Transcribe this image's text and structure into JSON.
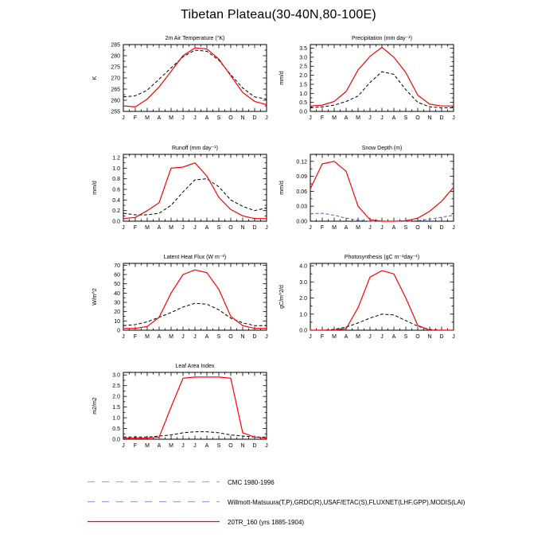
{
  "page_title": "Tibetan Plateau(30-40N,80-100E)",
  "months": [
    "J",
    "F",
    "M",
    "A",
    "M",
    "J",
    "J",
    "A",
    "S",
    "O",
    "N",
    "D",
    "J"
  ],
  "legend": {
    "items": [
      {
        "label": "CMC 1980-1996",
        "color": "#b0b0b0",
        "dash": "9 9"
      },
      {
        "label": "Willmott-Matsuura(T,P),GRDC(R),USAF/ETAC(S),FLUXNET(LHF,GPP),MODIS(LAI)",
        "color": "#9f9fdd",
        "dash": "9 9"
      },
      {
        "label": "20TR_160 (yrs 1885-1904)",
        "color": "#ff0000",
        "dash": ""
      }
    ]
  },
  "chart_data": [
    {
      "type": "line",
      "title": "2m Air Temperature (°K)",
      "ylabel": "K",
      "ylim": [
        255,
        285
      ],
      "yticks": [
        255,
        260,
        265,
        270,
        275,
        280,
        285
      ],
      "ydecimals": 0,
      "categories": [
        "J",
        "F",
        "M",
        "A",
        "M",
        "J",
        "J",
        "A",
        "S",
        "O",
        "N",
        "D",
        "J"
      ],
      "series": [
        {
          "name": "Willmott-Matsuura(T,P) obs",
          "color": "#000000",
          "dash": "4 2.5",
          "values": [
            261.5,
            262,
            264.5,
            269.5,
            274.5,
            279.5,
            282.5,
            282,
            278,
            271.5,
            265.5,
            261.5,
            260.5
          ]
        },
        {
          "name": "20TR_160 (yrs 1885-1904)",
          "color": "#ff0000",
          "dash": "",
          "values": [
            257.5,
            257,
            260.5,
            266,
            273,
            280,
            283.5,
            283,
            278.5,
            271,
            263.5,
            259.5,
            258
          ]
        }
      ]
    },
    {
      "type": "line",
      "title": "Precipitation (mm day⁻¹)",
      "ylabel": "mm/d",
      "ylim": [
        0,
        3.7
      ],
      "yticks": [
        0.0,
        0.5,
        1.0,
        1.5,
        2.0,
        2.5,
        3.0,
        3.5
      ],
      "ydecimals": 1,
      "categories": [
        "J",
        "F",
        "M",
        "A",
        "M",
        "J",
        "J",
        "A",
        "S",
        "O",
        "N",
        "D",
        "J"
      ],
      "series": [
        {
          "name": "Willmott-Matsuura(T,P) obs",
          "color": "#000000",
          "dash": "4 2.5",
          "values": [
            0.2,
            0.25,
            0.35,
            0.55,
            0.85,
            1.6,
            2.2,
            2.05,
            1.2,
            0.5,
            0.25,
            0.2,
            0.2
          ]
        },
        {
          "name": "20TR_160 (yrs 1885-1904)",
          "color": "#ff0000",
          "dash": "",
          "values": [
            0.3,
            0.35,
            0.55,
            1.1,
            2.3,
            3.05,
            3.55,
            3.0,
            2.15,
            0.9,
            0.4,
            0.3,
            0.3
          ]
        }
      ]
    },
    {
      "type": "line",
      "title": "Runoff (mm day⁻¹)",
      "ylabel": "mm/d",
      "ylim": [
        0,
        1.26
      ],
      "yticks": [
        0.0,
        0.2,
        0.4,
        0.6,
        0.8,
        1.0,
        1.2
      ],
      "ydecimals": 1,
      "categories": [
        "J",
        "F",
        "M",
        "A",
        "M",
        "J",
        "J",
        "A",
        "S",
        "O",
        "N",
        "D",
        "J"
      ],
      "series": [
        {
          "name": "GRDC(R) obs",
          "color": "#000000",
          "dash": "4 2.5",
          "values": [
            0.15,
            0.12,
            0.12,
            0.15,
            0.3,
            0.55,
            0.78,
            0.8,
            0.65,
            0.4,
            0.28,
            0.2,
            0.25
          ]
        },
        {
          "name": "20TR_160 (yrs 1885-1904)",
          "color": "#ff0000",
          "dash": "",
          "values": [
            0.05,
            0.07,
            0.2,
            0.35,
            1.0,
            1.02,
            1.1,
            0.85,
            0.45,
            0.22,
            0.1,
            0.05,
            0.05
          ]
        }
      ]
    },
    {
      "type": "line",
      "title": "Snow Depth (m)",
      "ylabel": "mm/d",
      "ylim": [
        0,
        0.134
      ],
      "yticks": [
        0.0,
        0.03,
        0.06,
        0.09,
        0.12
      ],
      "ydecimals": 2,
      "categories": [
        "J",
        "F",
        "M",
        "A",
        "M",
        "J",
        "J",
        "A",
        "S",
        "O",
        "N",
        "D",
        "J"
      ],
      "series": [
        {
          "name": "CMC 1980-1996 obs",
          "color": "#5a5acc",
          "dash": "4 2.5",
          "values": [
            0.015,
            0.016,
            0.012,
            0.006,
            0.002,
            0.0,
            0.0,
            0.0,
            0.0,
            0.001,
            0.004,
            0.008,
            0.012
          ]
        },
        {
          "name": "20TR_160 (yrs 1885-1904)",
          "color": "#ff0000",
          "dash": "",
          "values": [
            0.065,
            0.115,
            0.12,
            0.1,
            0.03,
            0.003,
            0.0,
            0.0,
            0.001,
            0.006,
            0.02,
            0.04,
            0.068
          ]
        }
      ]
    },
    {
      "type": "line",
      "title": "Latent Heat Flux (W m⁻²)",
      "ylabel": "W/m^2",
      "ylim": [
        0,
        72
      ],
      "yticks": [
        0,
        10,
        20,
        30,
        40,
        50,
        60,
        70
      ],
      "ydecimals": 0,
      "categories": [
        "J",
        "F",
        "M",
        "A",
        "M",
        "J",
        "J",
        "A",
        "S",
        "O",
        "N",
        "D",
        "J"
      ],
      "series": [
        {
          "name": "FLUXNET(LHF) obs",
          "color": "#000000",
          "dash": "4 2.5",
          "values": [
            5,
            6,
            9,
            14,
            19,
            25,
            29,
            28,
            22,
            13,
            8,
            5,
            5
          ]
        },
        {
          "name": "20TR_160 (yrs 1885-1904)",
          "color": "#ff0000",
          "dash": "",
          "values": [
            2,
            2,
            4,
            14,
            40,
            60,
            65,
            62,
            44,
            15,
            5,
            2,
            2
          ]
        }
      ]
    },
    {
      "type": "line",
      "title": "Photosynthesis (gC m⁻²day⁻¹)",
      "ylabel": "gC/m^2/d",
      "ylim": [
        0,
        4.15
      ],
      "yticks": [
        0.0,
        1.0,
        2.0,
        3.0,
        4.0
      ],
      "ydecimals": 1,
      "categories": [
        "J",
        "F",
        "M",
        "A",
        "M",
        "J",
        "J",
        "A",
        "S",
        "O",
        "N",
        "D",
        "J"
      ],
      "series": [
        {
          "name": "FLUXNET(GPP) obs",
          "color": "#000000",
          "dash": "4 2.5",
          "values": [
            0.0,
            0.0,
            0.05,
            0.2,
            0.45,
            0.75,
            1.0,
            0.95,
            0.6,
            0.25,
            0.05,
            0.0,
            0.0
          ]
        },
        {
          "name": "20TR_160 (yrs 1885-1904)",
          "color": "#ff0000",
          "dash": "",
          "values": [
            0.0,
            0.0,
            0.0,
            0.1,
            1.4,
            3.3,
            3.7,
            3.5,
            2.0,
            0.3,
            0.0,
            0.0,
            0.0
          ]
        }
      ]
    },
    {
      "type": "line",
      "title": "Leaf Area Index",
      "ylabel": "m2/m2",
      "ylim": [
        0,
        3.12
      ],
      "yticks": [
        0.0,
        0.5,
        1.0,
        1.5,
        2.0,
        2.5,
        3.0
      ],
      "ydecimals": 1,
      "categories": [
        "J",
        "F",
        "M",
        "A",
        "M",
        "J",
        "J",
        "A",
        "S",
        "O",
        "N",
        "D",
        "J"
      ],
      "series": [
        {
          "name": "MODIS(LAI) obs",
          "color": "#000000",
          "dash": "4 2.5",
          "values": [
            0.1,
            0.1,
            0.1,
            0.15,
            0.2,
            0.3,
            0.35,
            0.35,
            0.3,
            0.2,
            0.15,
            0.1,
            0.1
          ]
        },
        {
          "name": "20TR_160 (yrs 1885-1904)",
          "color": "#ff0000",
          "dash": "",
          "values": [
            0.05,
            0.05,
            0.05,
            0.1,
            1.5,
            2.85,
            2.9,
            2.9,
            2.9,
            2.85,
            0.3,
            0.1,
            0.05
          ]
        }
      ]
    }
  ]
}
